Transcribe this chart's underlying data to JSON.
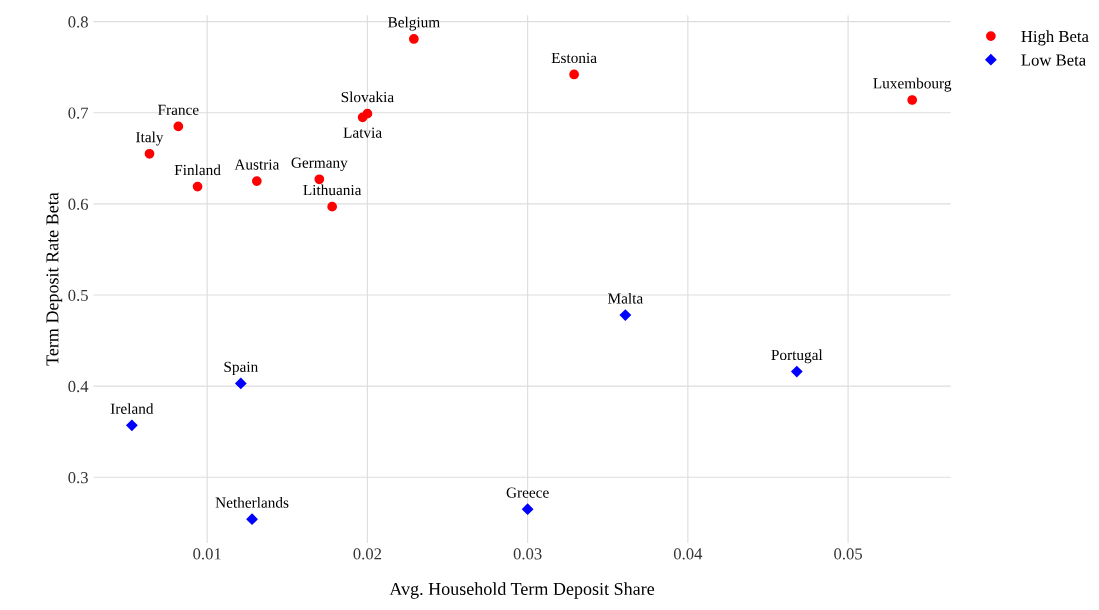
{
  "chart_data": {
    "type": "scatter",
    "xlabel": "Avg. Household Term Deposit Share",
    "ylabel": "Term Deposit Rate Beta",
    "xlim": [
      0.0029,
      0.0564
    ],
    "ylim": [
      0.228,
      0.807
    ],
    "xticks": [
      0.01,
      0.02,
      0.03,
      0.04,
      0.05
    ],
    "yticks": [
      0.3,
      0.4,
      0.5,
      0.6,
      0.7,
      0.8
    ],
    "grid": true,
    "legend": "top right",
    "series": [
      {
        "name": "High Beta",
        "color": "#ff0000",
        "marker": "circle",
        "x": [
          0.0229,
          0.0329,
          0.054,
          0.02,
          0.0197,
          0.0082,
          0.0064,
          0.0094,
          0.0131,
          0.017,
          0.0178
        ],
        "values": [
          0.781,
          0.742,
          0.714,
          0.699,
          0.695,
          0.685,
          0.655,
          0.619,
          0.625,
          0.627,
          0.597
        ]
      },
      {
        "name": "Low Beta",
        "color": "#0000ff",
        "marker": "diamond",
        "x": [
          0.0361,
          0.0468,
          0.0121,
          0.0053,
          0.03,
          0.0128
        ],
        "values": [
          0.478,
          0.416,
          0.403,
          0.357,
          0.265,
          0.254
        ]
      }
    ],
    "annotations": [
      {
        "text": "Belgium",
        "x": 0.0229,
        "y": 0.781
      },
      {
        "text": "Estonia",
        "x": 0.0329,
        "y": 0.742
      },
      {
        "text": "Luxembourg",
        "x": 0.054,
        "y": 0.714
      },
      {
        "text": "Slovakia",
        "x": 0.02,
        "y": 0.699
      },
      {
        "text": "Latvia",
        "x": 0.0197,
        "y": 0.695
      },
      {
        "text": "France",
        "x": 0.0082,
        "y": 0.685
      },
      {
        "text": "Italy",
        "x": 0.0064,
        "y": 0.655
      },
      {
        "text": "Finland",
        "x": 0.0094,
        "y": 0.619
      },
      {
        "text": "Austria",
        "x": 0.0131,
        "y": 0.625
      },
      {
        "text": "Germany",
        "x": 0.017,
        "y": 0.627
      },
      {
        "text": "Lithuania",
        "x": 0.0178,
        "y": 0.597
      },
      {
        "text": "Malta",
        "x": 0.0361,
        "y": 0.478
      },
      {
        "text": "Portugal",
        "x": 0.0468,
        "y": 0.416
      },
      {
        "text": "Spain",
        "x": 0.0121,
        "y": 0.403
      },
      {
        "text": "Ireland",
        "x": 0.0053,
        "y": 0.357
      },
      {
        "text": "Greece",
        "x": 0.03,
        "y": 0.265
      },
      {
        "text": "Netherlands",
        "x": 0.0128,
        "y": 0.254
      }
    ]
  }
}
